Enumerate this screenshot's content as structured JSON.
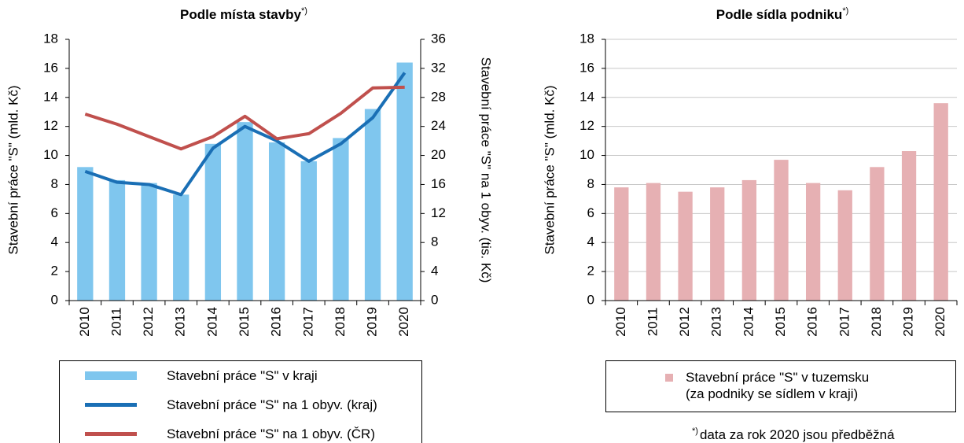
{
  "chart_data": [
    {
      "type": "combo",
      "title": "Podle místa stavby",
      "title_note": "*)",
      "y_label": "Stavební práce \"S\" (mld. Kč)",
      "y2_label": "Stavební práce \"S\" na 1 obyv. (tis. Kč)",
      "categories": [
        "2010",
        "2011",
        "2012",
        "2013",
        "2014",
        "2015",
        "2016",
        "2017",
        "2018",
        "2019",
        "2020"
      ],
      "ylim": [
        0,
        18
      ],
      "yticks": [
        0,
        2,
        4,
        6,
        8,
        10,
        12,
        14,
        16,
        18
      ],
      "y2lim": [
        0,
        36
      ],
      "y2ticks": [
        0,
        4,
        8,
        12,
        16,
        20,
        24,
        28,
        32,
        36
      ],
      "grid": false,
      "series": [
        {
          "name": "Stavební práce \"S\" v kraji",
          "kind": "bar",
          "color": "#7fc6ee",
          "values": [
            9.2,
            8.3,
            8.1,
            7.3,
            10.8,
            12.3,
            10.9,
            9.6,
            11.2,
            13.2,
            16.4
          ]
        },
        {
          "name": "Stavební práce \"S\" na 1 obyv. (kraj)",
          "kind": "line",
          "axis": "y2",
          "color": "#1a6fb5",
          "values": [
            17.8,
            16.3,
            16.0,
            14.6,
            21.0,
            24.0,
            22.0,
            19.2,
            21.6,
            25.2,
            31.4
          ]
        },
        {
          "name": "Stavební práce \"S\" na 1 obyv. (ČR)",
          "kind": "line",
          "axis": "y2",
          "color": "#c0504d",
          "values": [
            25.7,
            24.3,
            22.6,
            20.9,
            22.6,
            25.4,
            22.3,
            23.0,
            25.8,
            29.3,
            29.4
          ]
        }
      ]
    },
    {
      "type": "bar",
      "title": "Podle sídla podniku",
      "title_note": "*)",
      "y_label": "Stavební práce \"S\" (mld. Kč)",
      "categories": [
        "2010",
        "2011",
        "2012",
        "2013",
        "2014",
        "2015",
        "2016",
        "2017",
        "2018",
        "2019",
        "2020"
      ],
      "ylim": [
        0,
        18
      ],
      "yticks": [
        0,
        2,
        4,
        6,
        8,
        10,
        12,
        14,
        16,
        18
      ],
      "grid": true,
      "series": [
        {
          "name": "Stavební práce \"S\" v tuzemsku\n(za podniky se sídlem v kraji)",
          "kind": "bar",
          "color": "#e6b0b3",
          "values": [
            7.8,
            8.1,
            7.5,
            7.8,
            8.3,
            9.7,
            8.1,
            7.6,
            9.2,
            10.3,
            13.6
          ]
        }
      ],
      "footnote": {
        "mark": "*)",
        "text": "data za rok 2020 jsou předběžná"
      }
    }
  ]
}
